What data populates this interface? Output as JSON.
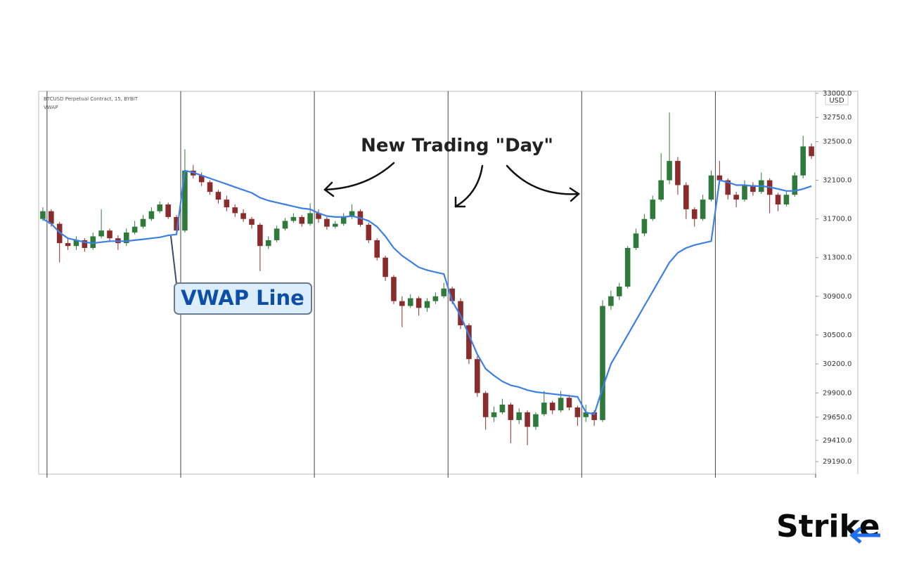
{
  "chart_data": {
    "type": "candlestick",
    "title": "BTCUSD Perpetual Contract, 15, BYBIT",
    "currency": "USD",
    "ylim": [
      29060,
      33020
    ],
    "yticks": [
      {
        "value": 29190,
        "label": "29190.0"
      },
      {
        "value": 29410,
        "label": "29410.0"
      },
      {
        "value": 29650,
        "label": "29650.0"
      },
      {
        "value": 29900,
        "label": "29900.0"
      },
      {
        "value": 30200,
        "label": "30200.0"
      },
      {
        "value": 30500,
        "label": "30500.0"
      },
      {
        "value": 30900,
        "label": "30900.0"
      },
      {
        "value": 31300,
        "label": "31300.0"
      },
      {
        "value": 31700,
        "label": "31700.0"
      },
      {
        "value": 32100,
        "label": "32100.0"
      },
      {
        "value": 32500,
        "label": "32500.0"
      },
      {
        "value": 32750,
        "label": "32750.0"
      },
      {
        "value": 33000,
        "label": "33000.0"
      }
    ],
    "candles": {
      "up_color": "#2f7a3a",
      "down_color": "#8a2c2c",
      "ohlc": [
        [
          31700,
          31820,
          31680,
          31780
        ],
        [
          31780,
          31800,
          31620,
          31650
        ],
        [
          31650,
          31670,
          31250,
          31450
        ],
        [
          31450,
          31500,
          31380,
          31420
        ],
        [
          31420,
          31520,
          31380,
          31480
        ],
        [
          31480,
          31500,
          31360,
          31400
        ],
        [
          31400,
          31560,
          31380,
          31520
        ],
        [
          31520,
          31800,
          31500,
          31580
        ],
        [
          31580,
          31600,
          31460,
          31500
        ],
        [
          31500,
          31530,
          31380,
          31450
        ],
        [
          31450,
          31600,
          31420,
          31560
        ],
        [
          31560,
          31680,
          31540,
          31620
        ],
        [
          31620,
          31740,
          31600,
          31700
        ],
        [
          31700,
          31820,
          31680,
          31780
        ],
        [
          31780,
          31880,
          31760,
          31850
        ],
        [
          31850,
          31870,
          31700,
          31720
        ],
        [
          31720,
          31740,
          31540,
          31580
        ],
        [
          31580,
          32420,
          31560,
          32200
        ],
        [
          32200,
          32260,
          32120,
          32150
        ],
        [
          32150,
          32180,
          32040,
          32080
        ],
        [
          32080,
          32100,
          31950,
          31980
        ],
        [
          31980,
          32000,
          31860,
          31900
        ],
        [
          31900,
          31940,
          31780,
          31820
        ],
        [
          31820,
          31850,
          31720,
          31760
        ],
        [
          31760,
          31800,
          31670,
          31700
        ],
        [
          31700,
          31720,
          31600,
          31640
        ],
        [
          31640,
          31660,
          31160,
          31420
        ],
        [
          31420,
          31520,
          31390,
          31480
        ],
        [
          31480,
          31630,
          31460,
          31600
        ],
        [
          31600,
          31710,
          31580,
          31680
        ],
        [
          31680,
          31760,
          31660,
          31720
        ],
        [
          31720,
          31740,
          31620,
          31650
        ],
        [
          31650,
          31860,
          31630,
          31760
        ],
        [
          31760,
          31800,
          31660,
          31700
        ],
        [
          31700,
          31720,
          31590,
          31620
        ],
        [
          31620,
          31680,
          31600,
          31650
        ],
        [
          31650,
          31760,
          31630,
          31720
        ],
        [
          31720,
          31850,
          31700,
          31780
        ],
        [
          31780,
          31800,
          31620,
          31640
        ],
        [
          31640,
          31660,
          31450,
          31480
        ],
        [
          31480,
          31500,
          31270,
          31300
        ],
        [
          31300,
          31320,
          31060,
          31100
        ],
        [
          31100,
          31120,
          30820,
          30850
        ],
        [
          30850,
          30900,
          30580,
          30800
        ],
        [
          30800,
          30920,
          30780,
          30880
        ],
        [
          30880,
          30900,
          30700,
          30780
        ],
        [
          30780,
          30880,
          30740,
          30850
        ],
        [
          30850,
          30940,
          30820,
          30900
        ],
        [
          30900,
          31040,
          30880,
          30980
        ],
        [
          30980,
          31000,
          30820,
          30850
        ],
        [
          30850,
          30880,
          30560,
          30600
        ],
        [
          30600,
          30620,
          30200,
          30250
        ],
        [
          30250,
          30280,
          29860,
          29900
        ],
        [
          29900,
          29920,
          29520,
          29650
        ],
        [
          29650,
          29760,
          29600,
          29700
        ],
        [
          29700,
          29840,
          29680,
          29780
        ],
        [
          29780,
          29800,
          29380,
          29620
        ],
        [
          29620,
          29740,
          29580,
          29700
        ],
        [
          29700,
          29720,
          29360,
          29550
        ],
        [
          29550,
          29700,
          29520,
          29680
        ],
        [
          29680,
          29920,
          29660,
          29800
        ],
        [
          29800,
          29820,
          29680,
          29720
        ],
        [
          29720,
          29920,
          29700,
          29850
        ],
        [
          29850,
          29880,
          29720,
          29750
        ],
        [
          29750,
          29770,
          29560,
          29650
        ],
        [
          29650,
          29780,
          29600,
          29700
        ],
        [
          29700,
          29720,
          29560,
          29620
        ],
        [
          29620,
          30860,
          29600,
          30800
        ],
        [
          30800,
          30960,
          30760,
          30900
        ],
        [
          30900,
          31040,
          30860,
          31000
        ],
        [
          31000,
          31420,
          30980,
          31400
        ],
        [
          31400,
          31600,
          31380,
          31550
        ],
        [
          31550,
          31750,
          31520,
          31700
        ],
        [
          31700,
          31940,
          31680,
          31900
        ],
        [
          31900,
          32380,
          31880,
          32100
        ],
        [
          32100,
          32800,
          32060,
          32300
        ],
        [
          32300,
          32340,
          31950,
          32050
        ],
        [
          32050,
          32080,
          31700,
          31800
        ],
        [
          31800,
          31820,
          31620,
          31700
        ],
        [
          31700,
          31950,
          31680,
          31900
        ],
        [
          31900,
          32200,
          31880,
          32150
        ],
        [
          32150,
          32300,
          32060,
          32100
        ],
        [
          32100,
          32120,
          31900,
          31950
        ],
        [
          31950,
          31980,
          31820,
          31900
        ],
        [
          31900,
          32100,
          31880,
          32050
        ],
        [
          32050,
          32080,
          31940,
          31980
        ],
        [
          31980,
          32180,
          31960,
          32100
        ],
        [
          32100,
          32120,
          31760,
          31950
        ],
        [
          31950,
          31970,
          31780,
          31850
        ],
        [
          31850,
          31990,
          31830,
          31950
        ],
        [
          31950,
          32180,
          31930,
          32150
        ],
        [
          32150,
          32560,
          32120,
          32450
        ],
        [
          32450,
          32480,
          32320,
          32350
        ]
      ]
    },
    "vwap": {
      "name": "VWAP",
      "color": "#3d7fe6",
      "values": [
        31700,
        31650,
        31560,
        31500,
        31480,
        31460,
        31450,
        31460,
        31470,
        31470,
        31470,
        31480,
        31490,
        31500,
        31510,
        31530,
        31540,
        32200,
        32180,
        32150,
        32120,
        32090,
        32060,
        32030,
        32000,
        31970,
        31920,
        31890,
        31870,
        31850,
        31830,
        31810,
        31800,
        31760,
        31730,
        31720,
        31720,
        31730,
        31710,
        31680,
        31620,
        31520,
        31400,
        31320,
        31260,
        31200,
        31170,
        31150,
        31130,
        30850,
        30700,
        30500,
        30300,
        30150,
        30080,
        30020,
        29980,
        29960,
        29930,
        29910,
        29900,
        29890,
        29880,
        29870,
        29860,
        29700,
        29680,
        29950,
        30200,
        30350,
        30500,
        30650,
        30800,
        30950,
        31100,
        31250,
        31350,
        31400,
        31430,
        31450,
        31470,
        32100,
        32080,
        32050,
        32050,
        32040,
        32040,
        32030,
        32010,
        31990,
        31990,
        32010,
        32040
      ]
    },
    "annotations": [
      "New Trading \"Day\"",
      "VWAP Line"
    ]
  },
  "logo": "Strike"
}
